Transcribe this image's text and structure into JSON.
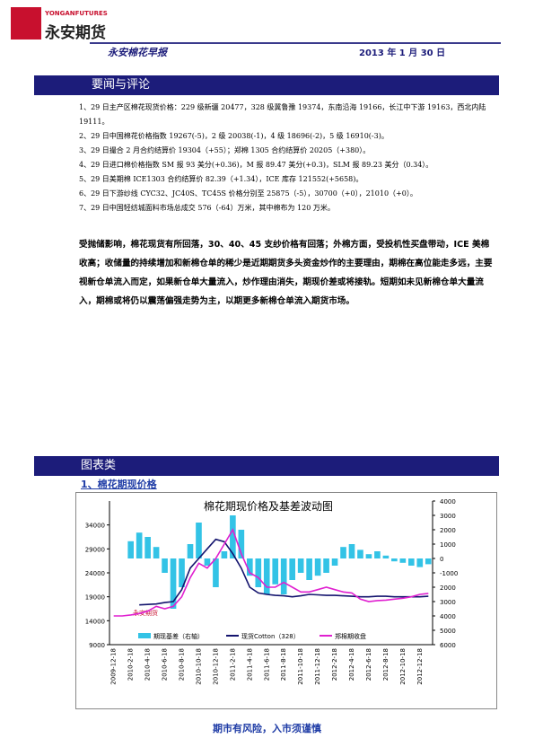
{
  "header": {
    "logo_en": "YONGANFUTURES",
    "logo_cn": "永安期货",
    "report_title": "永安棉花早报",
    "date": "2013 年 1 月 30 日"
  },
  "news": {
    "title": "要闻与评论",
    "items": [
      "1、29 日主产区棉花现货价格：229 级新疆 20477，328 级冀鲁豫 19374，东南沿海 19166，长江中下游 19163，西北内陆 19111。",
      "2、29 日中国棉花价格指数 19267(-5)，2 级 20038(-1)，4 级 18696(-2)，5 级 16910(-3)。",
      "3、29 日撮合 2 月合约结算价 19304（+55）；郑棉 1305 合约结算价 20205（+380）。",
      "4、29 日进口棉价格指数 SM 报 93 美分(+0.36)，M 报 89.47 美分(+0.3)，SLM 报 89.23 美分（0.34）。",
      "5、29 日美期棉 ICE1303 合约结算价 82.39（+1.34），ICE 库存 121552(+5658)。",
      "6、29 日下游纱线 CYC32、JC40S、TC45S 价格分别至 25875（-5），30700（+0），21010（+0）。",
      "7、29 日中国轻纺城面料市场总成交 576（-64）万米，其中棉布为 120 万米。"
    ]
  },
  "commentary": "受抛储影响，棉花现货有所回落，30、40、45 支纱价格有回落；外棉方面，受投机性买盘带动，ICE 美棉收高；收储量的持续增加和新棉仓单的稀少是近期期货多头资金炒作的主要理由，期棉在高位能走多远，主要视新仓单流入而定，如果新仓单大量流入，炒作理由消失，期现价差或将接轨。短期如未见新棉仓单大量流入，期棉或将仍以震荡偏强走势为主，以期更多新棉仓单流入期货市场。",
  "charts_section": {
    "title": "图表类",
    "subtitle": "1、棉花期现价格"
  },
  "chart_data": {
    "type": "bar-line",
    "title": "棉花期现价格及基差波动图",
    "watermark": "永安期货",
    "categories": [
      "2009-12-18",
      null,
      "2010-2-18",
      null,
      "2010-4-18",
      null,
      "2010-6-18",
      null,
      "2010-8-18",
      null,
      "2010-10-18",
      null,
      "2010-12-18",
      null,
      "2011-2-18",
      null,
      "2011-4-18",
      null,
      "2011-6-18",
      null,
      "2011-8-18",
      null,
      "2011-10-18",
      null,
      "2011-12-18",
      null,
      "2012-2-18",
      null,
      "2012-4-18",
      null,
      "2012-6-18",
      null,
      "2012-8-18",
      null,
      "2012-10-18",
      null,
      "2012-12-18",
      null
    ],
    "series": [
      {
        "name": "期现基差（右轴）",
        "kind": "bar",
        "axis": "y2",
        "color": "#33c3e6",
        "values": [
          null,
          null,
          1200,
          1800,
          1500,
          800,
          -1000,
          -3500,
          -2000,
          1000,
          2500,
          -500,
          -2000,
          500,
          3000,
          2000,
          -1200,
          -2000,
          -2500,
          -1800,
          -2500,
          -1500,
          -1000,
          -1500,
          -1200,
          -1000,
          -500,
          800,
          1000,
          600,
          300,
          500,
          200,
          -200,
          -300,
          -500,
          -600,
          -400
        ]
      },
      {
        "name": "现货Cotton（328）",
        "kind": "line",
        "color": "#14146e",
        "values": [
          null,
          null,
          null,
          17300,
          17400,
          17500,
          17800,
          18000,
          20500,
          25000,
          27000,
          29000,
          31000,
          30500,
          28000,
          25000,
          21000,
          19800,
          19500,
          19300,
          19200,
          19000,
          19200,
          19500,
          19400,
          19300,
          19300,
          19200,
          19100,
          19000,
          19000,
          19100,
          19100,
          19000,
          19000,
          19000,
          19000,
          19100
        ]
      },
      {
        "name": "郑棉期收盘",
        "kind": "line",
        "color": "#e020d0",
        "values": [
          15000,
          15000,
          15200,
          15500,
          16000,
          17000,
          16500,
          17000,
          19000,
          23000,
          26000,
          25000,
          27000,
          30000,
          33000,
          28000,
          24000,
          23000,
          21000,
          21000,
          22000,
          21000,
          20000,
          20000,
          20500,
          21000,
          20500,
          20000,
          19800,
          18500,
          18000,
          18200,
          18300,
          18500,
          18700,
          19000,
          19500,
          19700
        ]
      }
    ],
    "ylim": [
      9000,
      39000
    ],
    "yticks": [
      9000,
      14000,
      19000,
      24000,
      29000,
      34000
    ],
    "y2lim": [
      -6000,
      4000
    ],
    "y2ticks": [
      4000,
      3000,
      2000,
      1000,
      0,
      -1000,
      {
        "value": -2000,
        "label": "2000"
      },
      {
        "value": -3000,
        "label": "3000"
      },
      {
        "value": -4000,
        "label": "4000"
      },
      {
        "value": -5000,
        "label": "5000"
      },
      {
        "value": -6000,
        "label": "6000"
      }
    ],
    "legend": "bottom"
  },
  "footer": "期市有风险，入市须谨慎"
}
